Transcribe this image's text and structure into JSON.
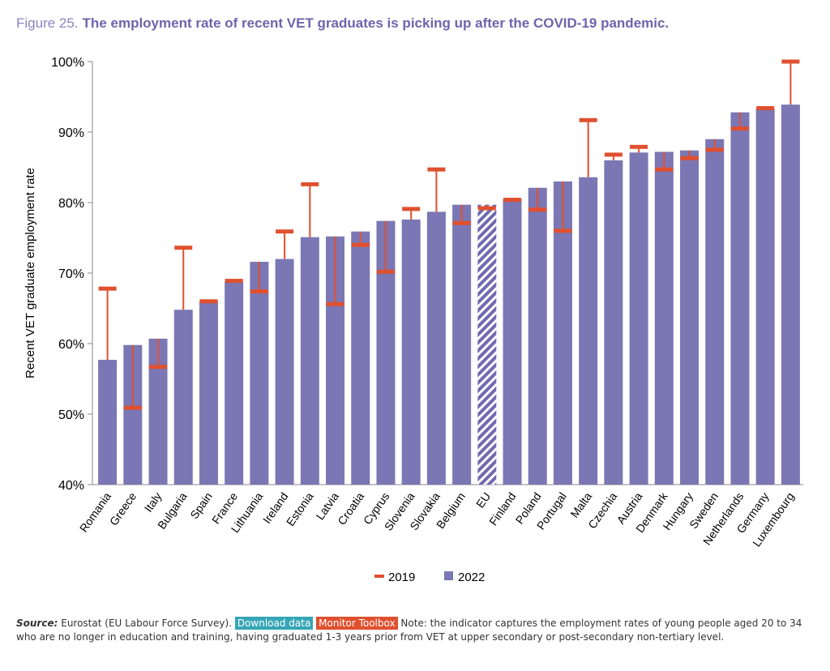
{
  "chart_data": {
    "type": "bar",
    "figure_label": "Figure 25.",
    "title": "The employment rate of recent VET graduates is picking up after the COVID-19 pandemic.",
    "y_label": "Recent VET graduate employment rate",
    "categories": [
      "Romania",
      "Greece",
      "Italy",
      "Bulgaria",
      "Spain",
      "France",
      "Lithuania",
      "Ireland",
      "Estonia",
      "Latvia",
      "Croatia",
      "Cyprus",
      "Slovenia",
      "Slovakia",
      "Belgium",
      "EU",
      "Finland",
      "Poland",
      "Portugal",
      "Malta",
      "Czechia",
      "Austria",
      "Denmark",
      "Hungary",
      "Sweden",
      "Netherlands",
      "Germany",
      "Luxembourg"
    ],
    "series": [
      {
        "name": "2019",
        "color": "#e0502f",
        "style": "marker",
        "values": [
          67.8,
          50.9,
          56.7,
          73.6,
          66.0,
          68.9,
          67.4,
          75.9,
          82.6,
          65.6,
          74.0,
          70.2,
          79.1,
          84.7,
          77.1,
          79.2,
          80.4,
          79.0,
          76.0,
          91.7,
          86.8,
          87.9,
          84.7,
          86.3,
          87.5,
          90.5,
          93.4,
          100.0
        ]
      },
      {
        "name": "2022",
        "color": "#7b77b4",
        "style": "bar",
        "values": [
          57.7,
          59.8,
          60.7,
          64.8,
          66.0,
          68.8,
          71.6,
          72.0,
          75.1,
          75.2,
          75.9,
          77.4,
          77.6,
          78.7,
          79.7,
          79.7,
          80.5,
          82.1,
          83.0,
          83.6,
          86.0,
          87.1,
          87.2,
          87.4,
          89.0,
          92.8,
          93.3,
          93.9
        ]
      }
    ],
    "hatched_index": 15,
    "ylim": [
      40,
      100
    ],
    "yticks": [
      {
        "value": 40,
        "label": "40%"
      },
      {
        "value": 50,
        "label": "50%"
      },
      {
        "value": 60,
        "label": "60%"
      },
      {
        "value": 70,
        "label": "70%"
      },
      {
        "value": 80,
        "label": "80%"
      },
      {
        "value": 90,
        "label": "90%"
      },
      {
        "value": 100,
        "label": "100%"
      }
    ],
    "grid": false,
    "legend": "bottom",
    "source_label": "Source:",
    "source": "Eurostat (EU Labour Force Survey).",
    "buttons": [
      "Download data",
      "Monitor Toolbox"
    ],
    "note": "Note: the indicator captures the employment rates of young people aged 20 to 34 who are no longer in education and training, having graduated 1-3 years prior from VET at upper secondary or post-secondary non-tertiary level."
  }
}
